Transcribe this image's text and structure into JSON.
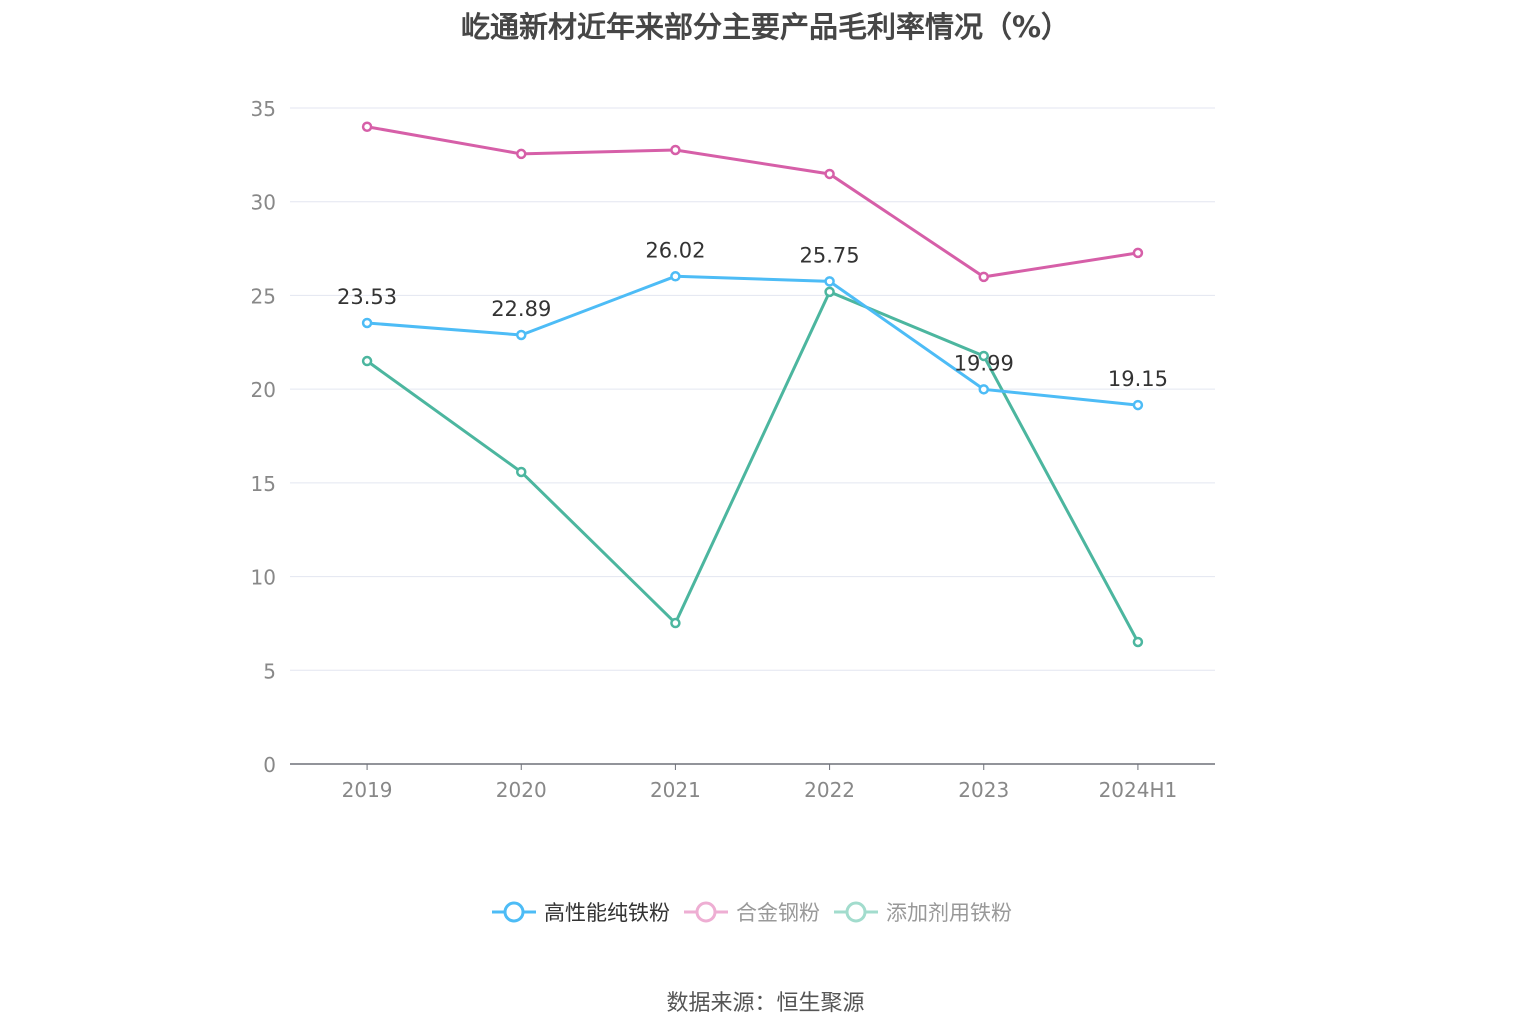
{
  "chart_data": {
    "type": "line",
    "title": "屹通新材近年来部分主要产品毛利率情况（%）",
    "categories": [
      "2019",
      "2020",
      "2021",
      "2022",
      "2023",
      "2024H1"
    ],
    "ylim": [
      0,
      35
    ],
    "yticks": [
      "0",
      "5",
      "10",
      "15",
      "20",
      "25",
      "30",
      "35"
    ],
    "grid": true,
    "legend_position": "bottom",
    "series": [
      {
        "name": "高性能纯铁粉",
        "color": "#4dbcf6",
        "values": [
          23.53,
          22.89,
          26.02,
          25.75,
          19.99,
          19.15
        ],
        "labels": [
          "23.53",
          "22.89",
          "26.02",
          "25.75",
          "19.99",
          "19.15"
        ],
        "legend_active": true
      },
      {
        "name": "合金钢粉",
        "color": "#d65fa8",
        "values": [
          34.0,
          32.55,
          32.76,
          31.48,
          25.99,
          27.27
        ],
        "legend_active": false
      },
      {
        "name": "添加剂用铁粉",
        "color": "#4cb69f",
        "values": [
          21.5,
          15.58,
          7.52,
          25.19,
          21.77,
          6.51
        ],
        "legend_active": false
      }
    ]
  },
  "source": "数据来源：恒生聚源"
}
